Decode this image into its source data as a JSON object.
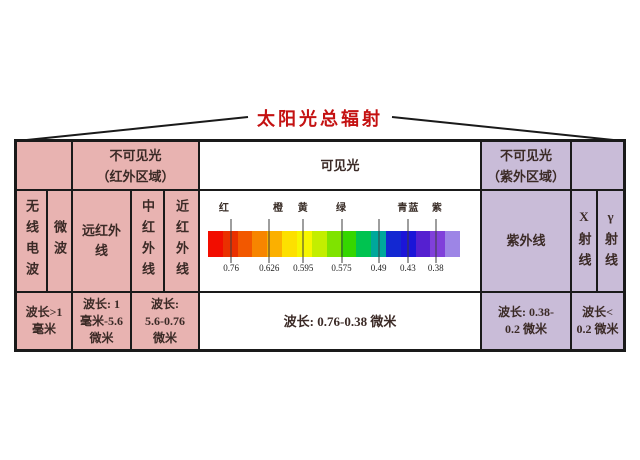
{
  "title": "太阳光总辐射",
  "colors": {
    "pink": "#e8b3b1",
    "purple": "#c9bcd8",
    "red": "#c41212",
    "line": "#1a1a1a"
  },
  "header": {
    "infrared_region": "不可见光\n（红外区域）",
    "visible": "可见光",
    "ultraviolet_region": "不可见光\n（紫外区域）"
  },
  "bands": {
    "radio": "无线电波",
    "microwave": "微波",
    "far_infrared": "远红外\n线",
    "mid_infrared": "中红外线",
    "near_infrared": "近红外线",
    "ultraviolet": "紫外线",
    "xray": "X射线",
    "gamma": "γ射线"
  },
  "wavelengths": {
    "radio_microwave": "波长>1\n毫米",
    "far_infrared": "波长: 1\n毫米-5.6\n微米",
    "mid_near_infrared": "波长:\n5.6-0.76\n微米",
    "visible": "波长: 0.76-0.38 微米",
    "ultraviolet": "波长: 0.38-\n0.2 微米",
    "xray_gamma": "波长<\n0.2 微米"
  },
  "chart_data": {
    "type": "spectrum-scale",
    "title": "可见光",
    "unit": "微米",
    "axis_direction": "wavelength decreasing left to right",
    "ticks": [
      {
        "value": "0.76",
        "pct": 9.2
      },
      {
        "value": "0.626",
        "pct": 24.3
      },
      {
        "value": "0.595",
        "pct": 37.8
      },
      {
        "value": "0.575",
        "pct": 53.0
      },
      {
        "value": "0.49",
        "pct": 67.7
      },
      {
        "value": "0.43",
        "pct": 79.3
      },
      {
        "value": "0.38",
        "pct": 90.4
      }
    ],
    "color_labels": [
      {
        "text": "红",
        "pct": 6.5
      },
      {
        "text": "橙",
        "pct": 28.0
      },
      {
        "text": "黄",
        "pct": 37.8
      },
      {
        "text": "绿",
        "pct": 53.0
      },
      {
        "text": "青蓝",
        "pct": 79.5
      },
      {
        "text": "紫",
        "pct": 91.0
      }
    ],
    "bar_colors": [
      "#f20d00",
      "#ea3000",
      "#f25800",
      "#f78500",
      "#fbb000",
      "#fde000",
      "#f6f600",
      "#c3ee00",
      "#7fe300",
      "#35d600",
      "#00c350",
      "#00a89b",
      "#1328d2",
      "#1b15d8",
      "#5520d0",
      "#8040da",
      "#9d85e6"
    ],
    "band_order": [
      "无线电波",
      "微波",
      "远红外线",
      "中红外线",
      "近红外线",
      "可见光",
      "紫外线",
      "X射线",
      "γ射线"
    ],
    "wavelength_ranges": {
      "radio_microwave": ">1毫米",
      "far_infrared": "1毫米-5.6微米",
      "mid_near_infrared": "5.6-0.76微米",
      "visible": "0.76-0.38微米",
      "ultraviolet": "0.38-0.2微米",
      "xray_gamma": "<0.2微米"
    }
  }
}
